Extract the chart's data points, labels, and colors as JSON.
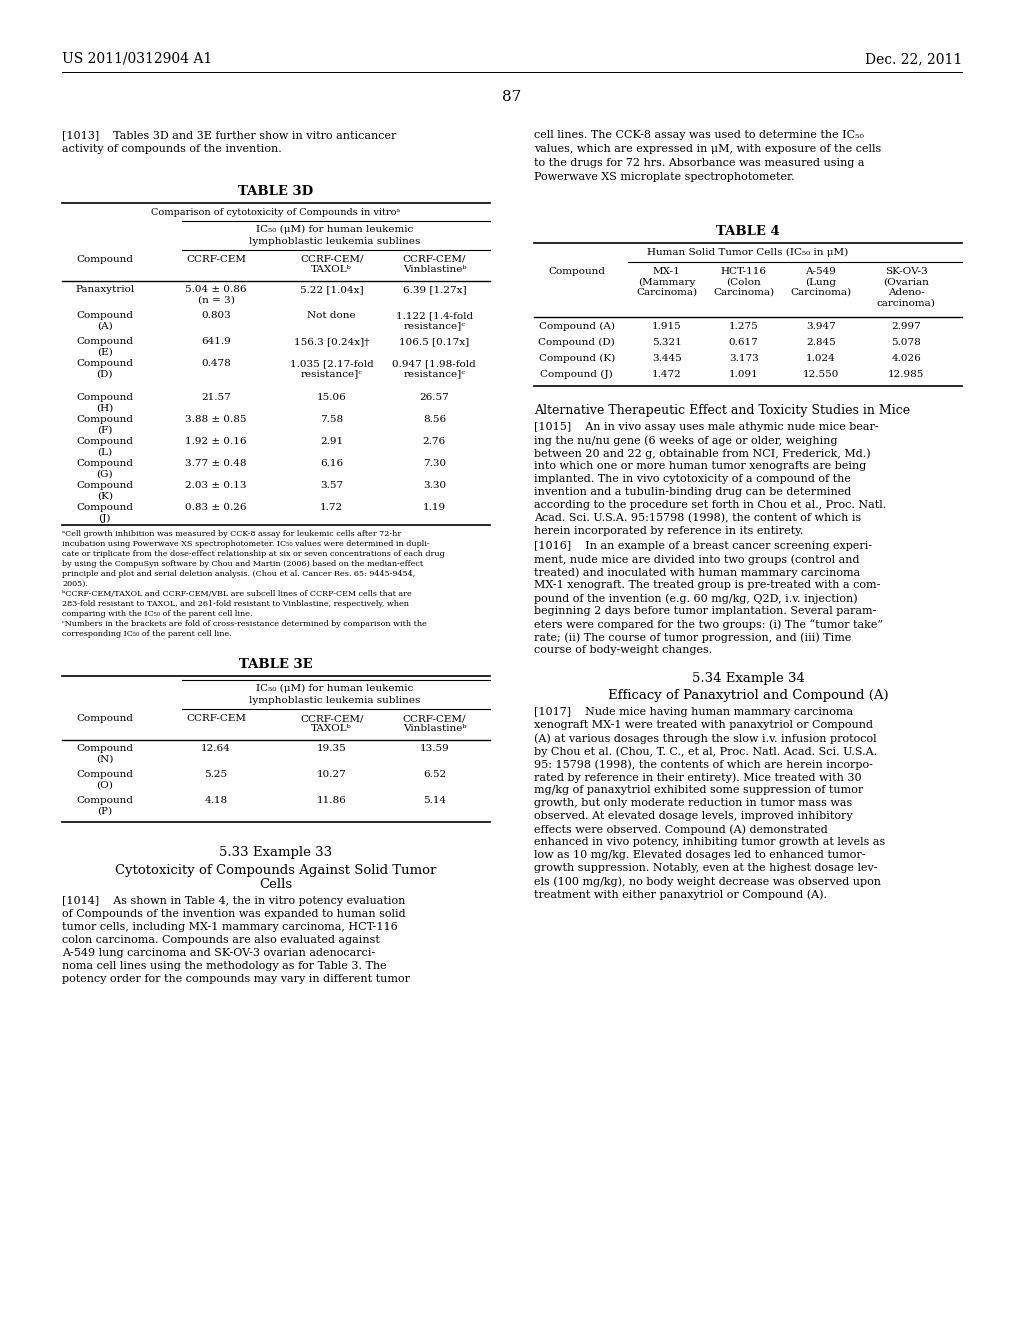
{
  "page_header_left": "US 2011/0312904 A1",
  "page_header_right": "Dec. 22, 2011",
  "page_number": "87",
  "para_1013_left": "[1013]    Tables 3D and 3E further show in vitro anticancer\nactivity of compounds of the invention.",
  "para_1013_right": "cell lines. The CCK-8 assay was used to determine the IC₅₀\nvalues, which are expressed in μM, with exposure of the cells\nto the drugs for 72 hrs. Absorbance was measured using a\nPowerwave XS microplate spectrophotometer.",
  "table3d_title": "TABLE 3D",
  "table3d_subtitle": "Comparison of cytotoxicity of Compounds in vitroᵃ",
  "table3d_subheader1": "IC₅₀ (μM) for human leukemic",
  "table3d_subheader2": "lymphoblastic leukemia sublines",
  "table3d_col1": "Compound",
  "table3d_col2": "CCRF-CEM",
  "table3d_col3": "CCRF-CEM/\nTAXOLᵇ",
  "table3d_col4": "CCRF-CEM/\nVinblastineᵇ",
  "table3d_rows": [
    [
      "Panaxytriol",
      "5.04 ± 0.86\n(n = 3)",
      "5.22 [1.04x]",
      "6.39 [1.27x]"
    ],
    [
      "Compound\n(A)",
      "0.803",
      "Not done",
      "1.122 [1.4-fold\nresistance]ᶜ"
    ],
    [
      "Compound\n(E)",
      "641.9",
      "156.3 [0.24x]†",
      "106.5 [0.17x]"
    ],
    [
      "Compound\n(D)",
      "0.478",
      "1.035 [2.17-fold\nresistance]ᶜ",
      "0.947 [1.98-fold\nresistance]ᶜ"
    ],
    [
      "Compound\n(H)",
      "21.57",
      "15.06",
      "26.57"
    ],
    [
      "Compound\n(F)",
      "3.88 ± 0.85",
      "7.58",
      "8.56"
    ],
    [
      "Compound\n(L)",
      "1.92 ± 0.16",
      "2.91",
      "2.76"
    ],
    [
      "Compound\n(G)",
      "3.77 ± 0.48",
      "6.16",
      "7.30"
    ],
    [
      "Compound\n(K)",
      "2.03 ± 0.13",
      "3.57",
      "3.30"
    ],
    [
      "Compound\n(J)",
      "0.83 ± 0.26",
      "1.72",
      "1.19"
    ]
  ],
  "fn_a": "ᵃCell growth inhibition was measured by CCK-8 assay for leukemic cells after 72-hr",
  "fn_a2": "incubation using Powerwave XS spectrophotometer. IC₅₀ values were determined in dupli-",
  "fn_a3": "cate or triplicate from the dose-effect relationship at six or seven concentrations of each drug",
  "fn_a4": "by using the CompuSyn software by Chou and Martin (2006) based on the median-effect",
  "fn_a5": "principle and plot and serial deletion analysis. (Chou et al. Cancer Res. 65: 9445-9454,",
  "fn_a6": "2005).",
  "fn_b": "ᵇCCRF-CEM/TAXOL and CCRF-CEM/VBL are subcell lines of CCRF-CEM cells that are",
  "fn_b2": "283-fold resistant to TAXOL, and 261-fold resistant to Vinblastine, respectively, when",
  "fn_b3": "comparing with the IC₅₀ of the parent cell line.",
  "fn_c": "ᶜNumbers in the brackets are fold of cross-resistance determined by comparison with the",
  "fn_c2": "corresponding IC₅₀ of the parent cell line.",
  "table3e_title": "TABLE 3E",
  "table3e_subheader1": "IC₅₀ (μM) for human leukemic",
  "table3e_subheader2": "lymphoblastic leukemia sublines",
  "table3e_col1": "Compound",
  "table3e_col2": "CCRF-CEM",
  "table3e_col3": "CCRF-CEM/\nTAXOLᵇ",
  "table3e_col4": "CCRF-CEM/\nVinblastineᵇ",
  "table3e_rows": [
    [
      "Compound\n(N)",
      "12.64",
      "19.35",
      "13.59"
    ],
    [
      "Compound\n(O)",
      "5.25",
      "10.27",
      "6.52"
    ],
    [
      "Compound\n(P)",
      "4.18",
      "11.86",
      "5.14"
    ]
  ],
  "example33_title": "5.33 Example 33",
  "example33_subtitle1": "Cytotoxicity of Compounds Against Solid Tumor",
  "example33_subtitle2": "Cells",
  "para_1014": "[1014]    As shown in Table 4, the in vitro potency evaluation\nof Compounds of the invention was expanded to human solid\ntumor cells, including MX-1 mammary carcinoma, HCT-116\ncolon carcinoma. Compounds are also evaluated against\nA-549 lung carcinoma and SK-OV-3 ovarian adenocarci-\nnoma cell lines using the methodology as for Table 3. The\npotency order for the compounds may vary in different tumor",
  "table4_title": "TABLE 4",
  "table4_subtitle": "Human Solid Tumor Cells (IC₅₀ in μM)",
  "table4_col1": "Compound",
  "table4_col2": "MX-1\n(Mammary\nCarcinoma)",
  "table4_col3": "HCT-116\n(Colon\nCarcinoma)",
  "table4_col4": "A-549\n(Lung\nCarcinoma)",
  "table4_col5": "SK-OV-3\n(Ovarian\nAdeno-\ncarcinoma)",
  "table4_rows": [
    [
      "Compound (A)",
      "1.915",
      "1.275",
      "3.947",
      "2.997"
    ],
    [
      "Compound (D)",
      "5.321",
      "0.617",
      "2.845",
      "5.078"
    ],
    [
      "Compound (K)",
      "3.445",
      "3.173",
      "1.024",
      "4.026"
    ],
    [
      "Compound (J)",
      "1.472",
      "1.091",
      "12.550",
      "12.985"
    ]
  ],
  "alt_title": "Alternative Therapeutic Effect and Toxicity Studies in Mice",
  "para_1015": "[1015]    An in vivo assay uses male athymic nude mice bear-\ning the nu/nu gene (6 weeks of age or older, weighing\nbetween 20 and 22 g, obtainable from NCI, Frederick, Md.)\ninto which one or more human tumor xenografts are being\nimplanted. The in vivo cytotoxicity of a compound of the\ninvention and a tubulin-binding drug can be determined\naccording to the procedure set forth in Chou et al., Proc. Natl.\nAcad. Sci. U.S.A. 95:15798 (1998), the content of which is\nherein incorporated by reference in its entirety.",
  "para_1016": "[1016]    In an example of a breast cancer screening experi-\nment, nude mice are divided into two groups (control and\ntreated) and inoculated with human mammary carcinoma\nMX-1 xenograft. The treated group is pre-treated with a com-\npound of the invention (e.g. 60 mg/kg, Q2D, i.v. injection)\nbeginning 2 days before tumor implantation. Several param-\neters were compared for the two groups: (i) The “tumor take”\nrate; (ii) The course of tumor progression, and (iii) Time\ncourse of body-weight changes.",
  "example34_title": "5.34 Example 34",
  "example34_subtitle": "Efficacy of Panaxytriol and Compound (A)",
  "para_1017": "[1017]    Nude mice having human mammary carcinoma\nxenograft MX-1 were treated with panaxytriol or Compound\n(A) at various dosages through the slow i.v. infusion protocol\nby Chou et al. (Chou, T. C., et al, Proc. Natl. Acad. Sci. U.S.A.\n95: 15798 (1998), the contents of which are herein incorpo-\nrated by reference in their entirety). Mice treated with 30\nmg/kg of panaxytriol exhibited some suppression of tumor\ngrowth, but only moderate reduction in tumor mass was\nobserved. At elevated dosage levels, improved inhibitory\neffects were observed. Compound (A) demonstrated\nenhanced in vivo potency, inhibiting tumor growth at levels as\nlow as 10 mg/kg. Elevated dosages led to enhanced tumor-\ngrowth suppression. Notably, even at the highest dosage lev-\nels (100 mg/kg), no body weight decrease was observed upon\ntreatment with either panaxytriol or Compound (A)."
}
